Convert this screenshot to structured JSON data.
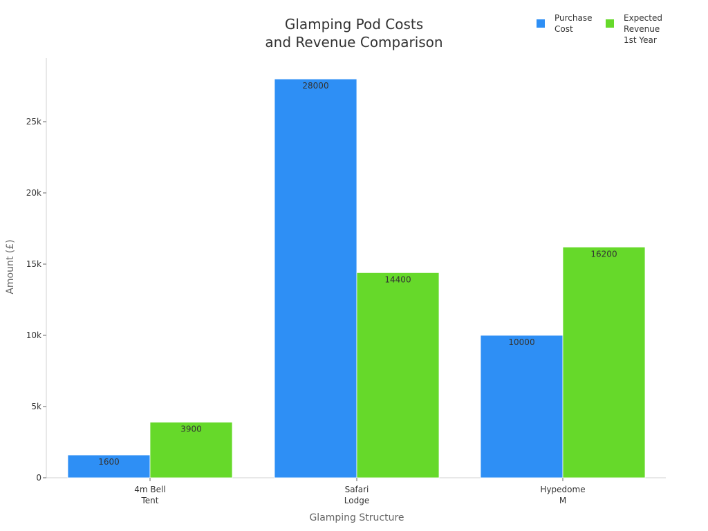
{
  "chart_data": {
    "type": "bar",
    "title": "Glamping Pod Costs\nand Revenue Comparison",
    "xlabel": "Glamping Structure",
    "ylabel": "Amount (£)",
    "categories": [
      "4m Bell\nTent",
      "Safari\nLodge",
      "Hypedome\nM"
    ],
    "series": [
      {
        "name": "Purchase Cost",
        "color": "#2e8ff5",
        "values": [
          1600,
          28000,
          10000
        ]
      },
      {
        "name": "Expected Revenue 1st Year",
        "color": "#66d92a",
        "values": [
          3900,
          14400,
          16200
        ]
      }
    ],
    "yticks": [
      0,
      5000,
      10000,
      15000,
      20000,
      25000
    ],
    "ytick_labels": [
      "0",
      "5k",
      "10k",
      "15k",
      "20k",
      "25k"
    ],
    "ylim": [
      0,
      29500
    ],
    "grid": false,
    "legend_position": "top-right",
    "data_labels": true
  },
  "title_line1": "Glamping Pod Costs",
  "title_line2": "and Revenue Comparison",
  "legend": [
    {
      "label": "Purchase\nCost",
      "color": "#2e8ff5"
    },
    {
      "label": "Expected\nRevenue\n1st Year",
      "color": "#66d92a"
    }
  ],
  "axis": {
    "x_title": "Glamping Structure",
    "y_title": "Amount (£)"
  }
}
